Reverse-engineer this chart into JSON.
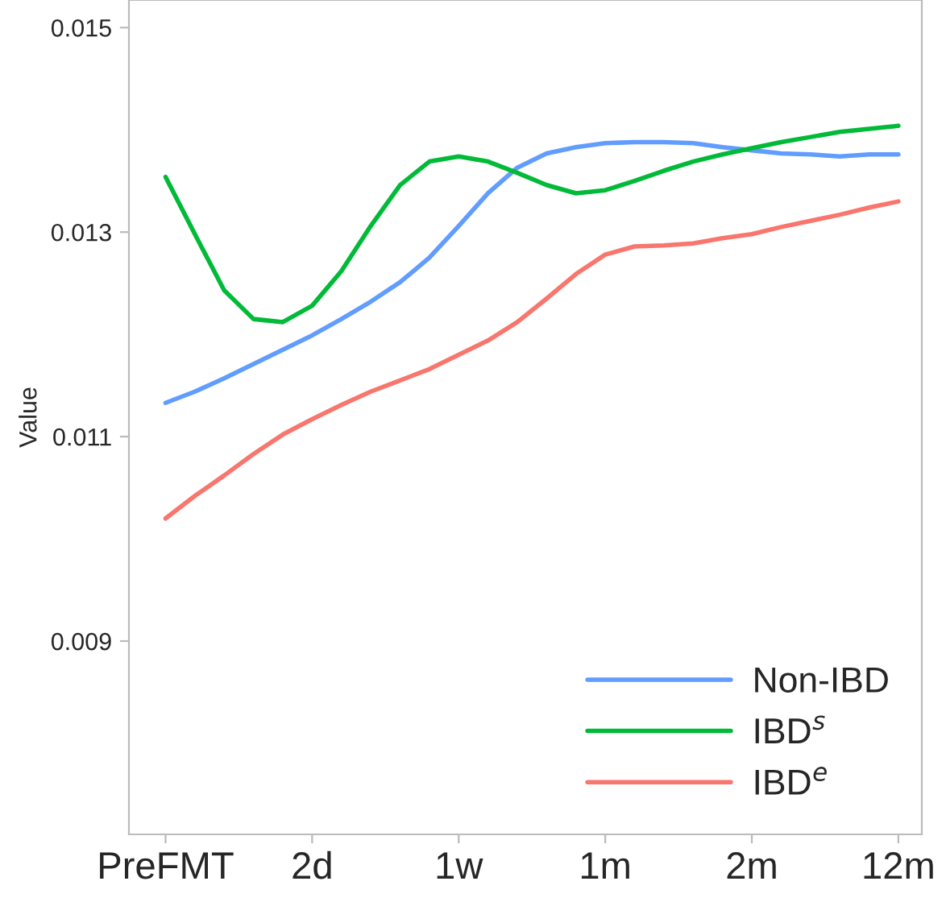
{
  "chart_data": {
    "type": "line",
    "ylabel": "Value",
    "categories": [
      "PreFMT",
      null,
      null,
      null,
      null,
      "2d",
      null,
      null,
      null,
      null,
      "1w",
      null,
      null,
      null,
      null,
      "1m",
      null,
      null,
      null,
      null,
      "2m",
      null,
      null,
      null,
      null,
      "12m"
    ],
    "series": [
      {
        "name": "Non-IBD",
        "color": "#619cff",
        "values": [
          0.01133,
          0.01144,
          0.01157,
          0.01171,
          0.01185,
          0.01199,
          0.01215,
          0.01232,
          0.01251,
          0.01275,
          0.01306,
          0.01338,
          0.01363,
          0.01377,
          0.01383,
          0.01387,
          0.01388,
          0.01388,
          0.01387,
          0.01383,
          0.0138,
          0.01377,
          0.01376,
          0.01374,
          0.01376,
          0.01376
        ]
      },
      {
        "name": "IBD$^{s}$",
        "color": "#00ba38",
        "values": [
          0.01354,
          0.01298,
          0.01243,
          0.01215,
          0.01212,
          0.01228,
          0.01262,
          0.01306,
          0.01346,
          0.01369,
          0.01374,
          0.01369,
          0.01358,
          0.01346,
          0.01338,
          0.01341,
          0.0135,
          0.0136,
          0.01369,
          0.01376,
          0.01382,
          0.01388,
          0.01393,
          0.01398,
          0.01401,
          0.01404
        ]
      },
      {
        "name": "IBD$^{e}$",
        "color": "#f8766d",
        "values": [
          0.0102,
          0.01042,
          0.01062,
          0.01083,
          0.01102,
          0.01117,
          0.01131,
          0.01144,
          0.01155,
          0.01166,
          0.0118,
          0.01194,
          0.01212,
          0.01235,
          0.01259,
          0.01278,
          0.01286,
          0.01287,
          0.01289,
          0.01294,
          0.01298,
          0.01305,
          0.01311,
          0.01317,
          0.01324,
          0.0133
        ]
      }
    ],
    "ylim": [
      0.00711,
      0.01527
    ],
    "yticks": [
      0.009,
      0.011,
      0.013,
      0.015
    ],
    "grid": false,
    "legend": "bottom right",
    "line_style": "solid",
    "marker": "none"
  }
}
